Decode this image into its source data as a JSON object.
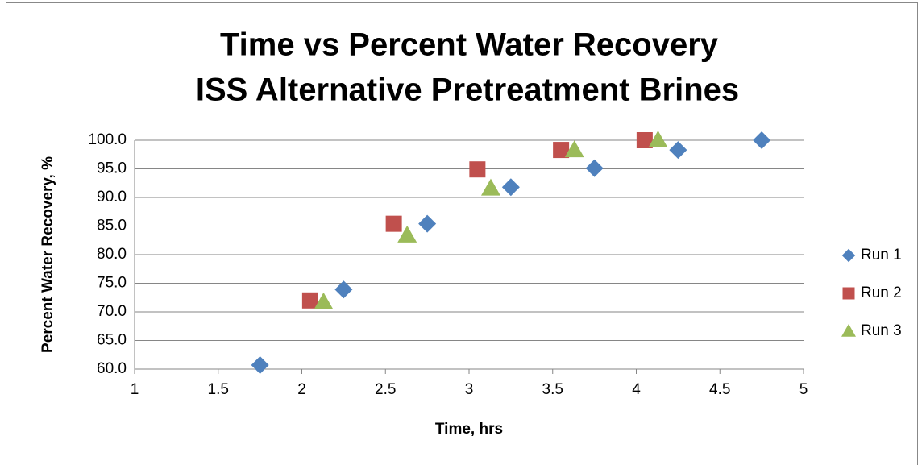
{
  "chart_data": {
    "type": "scatter",
    "title": "Time vs Percent Water Recovery",
    "subtitle": "ISS Alternative Pretreatment Brines",
    "x_label": "Time, hrs",
    "y_label": "Percent Water Recovery, %",
    "xlim": [
      1,
      5
    ],
    "xticks": [
      1,
      1.5,
      2,
      2.5,
      3,
      3.5,
      4,
      4.5,
      5
    ],
    "ylim": [
      60,
      100
    ],
    "yticks": [
      {
        "value": 60,
        "label": "60.0"
      },
      {
        "value": 65,
        "label": "65.0"
      },
      {
        "value": 70,
        "label": "70.0"
      },
      {
        "value": 75,
        "label": "75.0"
      },
      {
        "value": 80,
        "label": "80.0"
      },
      {
        "value": 85,
        "label": "85.0"
      },
      {
        "value": 90,
        "label": "90.0"
      },
      {
        "value": 95,
        "label": "95.0"
      },
      {
        "value": 100,
        "label": "100.0"
      }
    ],
    "grid": true,
    "legend": "right",
    "series": [
      {
        "name": "Run 1",
        "color": "#4f81bd",
        "marker": "diamond",
        "x": [
          1.75,
          2.25,
          2.75,
          3.25,
          3.75,
          4.25,
          4.75
        ],
        "values": [
          60.7,
          73.9,
          85.4,
          91.8,
          95.1,
          98.3,
          100
        ]
      },
      {
        "name": "Run 2",
        "color": "#c0504d",
        "marker": "square",
        "x": [
          2.05,
          2.55,
          3.05,
          3.55,
          4.05
        ],
        "values": [
          72.0,
          85.4,
          94.9,
          98.3,
          100
        ]
      },
      {
        "name": "Run 3",
        "color": "#9bbb59",
        "marker": "triangle",
        "x": [
          2.13,
          2.63,
          3.13,
          3.63,
          4.13
        ],
        "values": [
          71.7,
          83.4,
          91.6,
          98.3,
          100
        ]
      }
    ]
  }
}
